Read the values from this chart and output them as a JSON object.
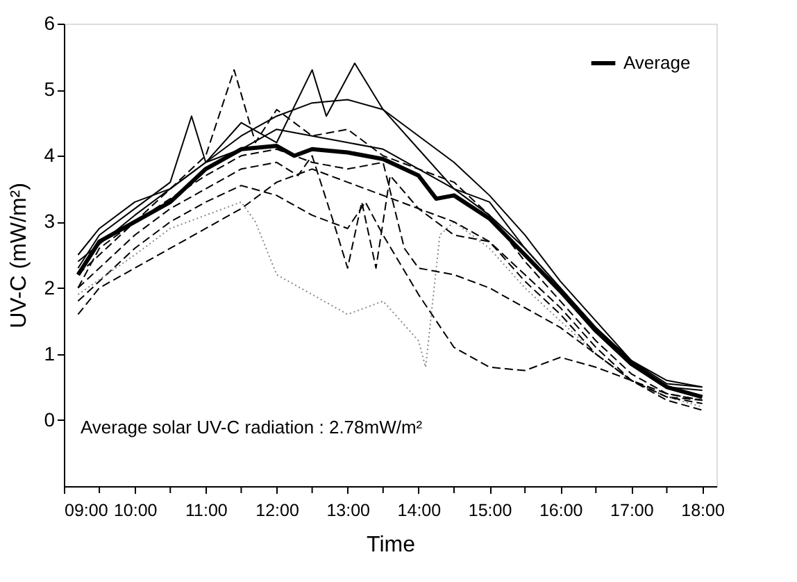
{
  "chart_data": {
    "type": "line",
    "xlabel": "Time",
    "ylabel": "UV-C (mW/m²)",
    "xlim": [
      9,
      18.2
    ],
    "ylim": [
      -1,
      6
    ],
    "xticks": [
      {
        "value": 9,
        "label": "09:00"
      },
      {
        "value": 9.5,
        "label": null
      },
      {
        "value": 10,
        "label": "10:00"
      },
      {
        "value": 10.5,
        "label": null
      },
      {
        "value": 11,
        "label": "11:00"
      },
      {
        "value": 11.5,
        "label": null
      },
      {
        "value": 12,
        "label": "12:00"
      },
      {
        "value": 12.5,
        "label": null
      },
      {
        "value": 13,
        "label": "13:00"
      },
      {
        "value": 13.5,
        "label": null
      },
      {
        "value": 14,
        "label": "14:00"
      },
      {
        "value": 14.5,
        "label": null
      },
      {
        "value": 15,
        "label": "15:00"
      },
      {
        "value": 15.5,
        "label": null
      },
      {
        "value": 16,
        "label": "16:00"
      },
      {
        "value": 16.5,
        "label": null
      },
      {
        "value": 17,
        "label": "17:00"
      },
      {
        "value": 17.5,
        "label": null
      },
      {
        "value": 18,
        "label": "18:00"
      }
    ],
    "yticks": [
      0,
      1,
      2,
      3,
      4,
      5,
      6
    ],
    "grid": false,
    "legend": "top right",
    "marker": "none",
    "annotations": [
      "Average solar UV-C radiation : 2.78mW/m²"
    ],
    "series": [
      {
        "color": "#000000",
        "line_style": "solid",
        "x": [
          9.2,
          10,
          11,
          11.5,
          12,
          12.5,
          13,
          13.5,
          14,
          14.5,
          15,
          15.5,
          16,
          16.5,
          17,
          17.5,
          18
        ],
        "values": [
          2.4,
          3.1,
          3.9,
          4.3,
          4.6,
          4.8,
          4.85,
          4.7,
          4.3,
          3.9,
          3.4,
          2.8,
          2.1,
          1.5,
          0.9,
          0.5,
          0.45
        ]
      },
      {
        "color": "#000000",
        "line_style": "solid",
        "x": [
          9.2,
          9.5,
          10,
          10.5,
          10.8,
          11,
          11.5,
          12,
          12.5,
          12.7,
          13.1,
          13.5,
          14,
          14.5,
          15,
          15.5,
          16,
          16.5,
          17,
          17.5,
          18
        ],
        "values": [
          2.3,
          2.8,
          3.2,
          3.6,
          4.6,
          3.9,
          4.5,
          4.2,
          5.3,
          4.6,
          5.4,
          4.7,
          4.1,
          3.5,
          3.3,
          2.6,
          2.0,
          1.4,
          0.9,
          0.6,
          0.5
        ]
      },
      {
        "color": "#000000",
        "line_style": "dashed",
        "x": [
          9.2,
          9.5,
          10,
          10.5,
          11,
          11.4,
          11.7,
          12,
          12.5,
          13,
          13.5,
          14,
          14.5,
          15,
          15.5,
          16,
          16.5,
          17,
          17.5,
          18
        ],
        "values": [
          2.0,
          2.6,
          3.0,
          3.5,
          4.0,
          5.3,
          4.2,
          4.7,
          4.3,
          4.4,
          4.0,
          3.8,
          3.6,
          3.1,
          2.4,
          1.8,
          1.2,
          0.7,
          0.4,
          0.3
        ]
      },
      {
        "color": "#000000",
        "line_style": "dashed",
        "x": [
          9.2,
          9.5,
          10,
          10.5,
          11,
          11.5,
          12,
          12.5,
          13,
          13.25,
          13.5,
          14,
          14.25,
          14.5,
          15,
          15.5,
          16,
          16.5,
          17,
          17.5,
          18
        ],
        "values": [
          1.8,
          2.1,
          2.6,
          3.0,
          3.3,
          3.55,
          3.4,
          3.1,
          2.9,
          3.3,
          2.8,
          1.9,
          1.5,
          1.1,
          0.8,
          0.75,
          0.95,
          0.8,
          0.6,
          0.35,
          0.3
        ]
      },
      {
        "color": "#888888",
        "line_style": "dotted",
        "x": [
          9.2,
          10,
          10.5,
          11,
          11.5,
          11.7,
          12,
          12.5,
          13,
          13.5,
          14,
          14.1,
          14.3,
          14.5,
          15,
          15.5,
          16,
          16.5,
          17,
          17.5,
          18
        ],
        "values": [
          1.9,
          2.5,
          2.9,
          3.1,
          3.3,
          3.0,
          2.2,
          1.9,
          1.6,
          1.8,
          1.2,
          0.8,
          2.8,
          3.0,
          2.6,
          2.0,
          1.5,
          1.0,
          0.6,
          0.35,
          0.2
        ]
      },
      {
        "color": "#000000",
        "line_style": "dashed",
        "x": [
          9.2,
          10,
          10.5,
          11,
          11.5,
          12,
          12.3,
          12.5,
          12.8,
          13,
          13.2,
          13.4,
          13.6,
          14,
          14.5,
          15,
          15.5,
          16,
          16.5,
          17,
          17.5,
          18
        ],
        "values": [
          2.0,
          2.8,
          3.2,
          3.5,
          3.8,
          3.9,
          3.7,
          4.0,
          3.0,
          2.3,
          3.3,
          2.3,
          3.7,
          3.2,
          2.8,
          2.7,
          2.1,
          1.6,
          1.0,
          0.6,
          0.4,
          0.3
        ]
      },
      {
        "color": "#000000",
        "line_style": "dashed",
        "x": [
          9.2,
          10,
          11,
          11.5,
          12,
          12.5,
          13,
          13.5,
          13.8,
          14,
          14.5,
          15,
          15.5,
          16,
          16.5,
          17,
          17.5,
          18
        ],
        "values": [
          2.2,
          3.0,
          3.7,
          4.0,
          4.1,
          3.9,
          3.8,
          3.9,
          2.6,
          2.3,
          2.2,
          2.0,
          1.7,
          1.4,
          1.0,
          0.6,
          0.35,
          0.25
        ]
      },
      {
        "color": "#000000",
        "line_style": "solid",
        "x": [
          9.2,
          9.5,
          10,
          10.5,
          11,
          11.5,
          12,
          12.5,
          13,
          13.5,
          14,
          14.5,
          15,
          15.5,
          16,
          16.5,
          17,
          17.5,
          18
        ],
        "values": [
          2.5,
          2.9,
          3.3,
          3.5,
          3.9,
          4.1,
          4.4,
          4.3,
          4.2,
          4.1,
          3.8,
          3.5,
          3.1,
          2.6,
          2.0,
          1.4,
          0.9,
          0.55,
          0.5
        ]
      },
      {
        "color": "#000000",
        "line_style": "dashed",
        "x": [
          9.2,
          9.5,
          10,
          10.5,
          11,
          11.5,
          12,
          12.5,
          13,
          13.5,
          14,
          14.5,
          15,
          15.5,
          16,
          16.5,
          17,
          17.5,
          18
        ],
        "values": [
          1.6,
          2.0,
          2.3,
          2.6,
          2.9,
          3.2,
          3.6,
          3.8,
          3.6,
          3.4,
          3.2,
          3.0,
          2.7,
          2.2,
          1.7,
          1.1,
          0.6,
          0.3,
          0.15
        ]
      },
      {
        "name": "Average",
        "color": "#000000",
        "line_style": "solid",
        "x": [
          9.2,
          9.5,
          10,
          10.5,
          11,
          11.5,
          12,
          12.25,
          12.5,
          13,
          13.5,
          14,
          14.25,
          14.5,
          15,
          15.5,
          16,
          16.5,
          17,
          17.5,
          18
        ],
        "values": [
          2.2,
          2.7,
          3.0,
          3.3,
          3.8,
          4.1,
          4.15,
          4.0,
          4.1,
          4.05,
          3.95,
          3.7,
          3.35,
          3.4,
          3.05,
          2.5,
          1.95,
          1.35,
          0.85,
          0.5,
          0.35
        ]
      }
    ]
  }
}
